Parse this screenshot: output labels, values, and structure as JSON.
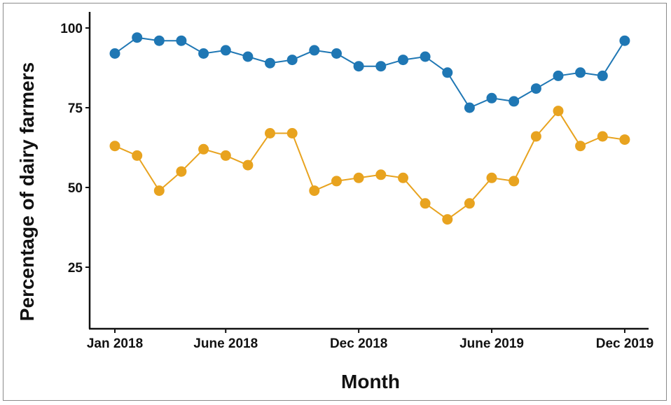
{
  "chart_data": {
    "type": "line",
    "title": "",
    "xlabel": "Month",
    "ylabel": "Percentage of dairy farmers",
    "x_ticks": [
      "Jan 2018",
      "June 2018",
      "Dec 2018",
      "June 2019",
      "Dec 2019"
    ],
    "y_ticks": [
      "25",
      "50",
      "75",
      "100"
    ],
    "ylim": [
      10,
      105
    ],
    "xlim": [
      "2017-12",
      "2020-01"
    ],
    "grid": false,
    "x": [
      "2018-01",
      "2018-02",
      "2018-03",
      "2018-04",
      "2018-05",
      "2018-06",
      "2018-07",
      "2018-08",
      "2018-09",
      "2018-10",
      "2018-11",
      "2018-12",
      "2019-01",
      "2019-02",
      "2019-03",
      "2019-04",
      "2019-05",
      "2019-06",
      "2019-07",
      "2019-08",
      "2019-09",
      "2019-10",
      "2019-11",
      "2019-12"
    ],
    "series": [
      {
        "color": "#1f77b4",
        "values": [
          92,
          97,
          96,
          96,
          92,
          93,
          91,
          89,
          90,
          93,
          92,
          88,
          88,
          90,
          91,
          86,
          75,
          78,
          77,
          81,
          85,
          86,
          85,
          96
        ]
      },
      {
        "color": "#e8a31f",
        "values": [
          63,
          60,
          49,
          55,
          62,
          60,
          57,
          67,
          67,
          49,
          52,
          53,
          54,
          53,
          45,
          40,
          45,
          53,
          52,
          66,
          74,
          63,
          66,
          65
        ]
      }
    ]
  }
}
